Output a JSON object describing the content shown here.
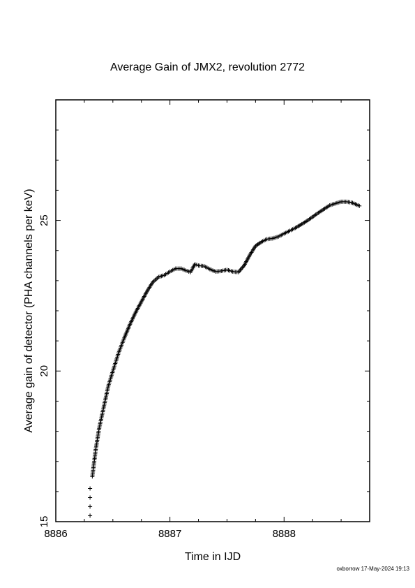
{
  "chart_data": {
    "type": "scatter",
    "title": "Average Gain of JMX2, revolution 2772",
    "xlabel": "Time in IJD",
    "ylabel": "Average gain of detector (PHA channels per keV)",
    "xlim": [
      8886,
      8888.75
    ],
    "ylim": [
      15,
      29
    ],
    "xticks": [
      8886,
      8887,
      8888
    ],
    "yticks": [
      15,
      20,
      25
    ],
    "grid": false,
    "marker": "plus",
    "series_curve": [
      [
        8886.32,
        16.5
      ],
      [
        8886.35,
        17.4
      ],
      [
        8886.38,
        18.1
      ],
      [
        8886.42,
        18.8
      ],
      [
        8886.46,
        19.5
      ],
      [
        8886.5,
        20.0
      ],
      [
        8886.55,
        20.6
      ],
      [
        8886.6,
        21.1
      ],
      [
        8886.65,
        21.55
      ],
      [
        8886.7,
        21.95
      ],
      [
        8886.75,
        22.3
      ],
      [
        8886.8,
        22.65
      ],
      [
        8886.85,
        22.95
      ],
      [
        8886.9,
        23.12
      ],
      [
        8886.95,
        23.18
      ],
      [
        8887.0,
        23.3
      ],
      [
        8887.05,
        23.4
      ],
      [
        8887.1,
        23.4
      ],
      [
        8887.15,
        23.32
      ],
      [
        8887.18,
        23.28
      ],
      [
        8887.2,
        23.42
      ],
      [
        8887.22,
        23.55
      ],
      [
        8887.25,
        23.5
      ],
      [
        8887.3,
        23.48
      ],
      [
        8887.35,
        23.38
      ],
      [
        8887.4,
        23.3
      ],
      [
        8887.45,
        23.32
      ],
      [
        8887.5,
        23.36
      ],
      [
        8887.55,
        23.3
      ],
      [
        8887.6,
        23.28
      ],
      [
        8887.65,
        23.5
      ],
      [
        8887.7,
        23.85
      ],
      [
        8887.75,
        24.15
      ],
      [
        8887.8,
        24.28
      ],
      [
        8887.85,
        24.38
      ],
      [
        8887.9,
        24.4
      ],
      [
        8887.95,
        24.46
      ],
      [
        8888.0,
        24.56
      ],
      [
        8888.1,
        24.75
      ],
      [
        8888.2,
        24.98
      ],
      [
        8888.3,
        25.25
      ],
      [
        8888.4,
        25.5
      ],
      [
        8888.5,
        25.62
      ],
      [
        8888.55,
        25.62
      ],
      [
        8888.6,
        25.58
      ],
      [
        8888.66,
        25.48
      ]
    ],
    "series_outliers": [
      [
        8886.3,
        15.2
      ],
      [
        8886.3,
        15.5
      ],
      [
        8886.3,
        15.8
      ],
      [
        8886.3,
        16.1
      ]
    ]
  },
  "footer": "oxborrow 17-May-2024 19:13"
}
